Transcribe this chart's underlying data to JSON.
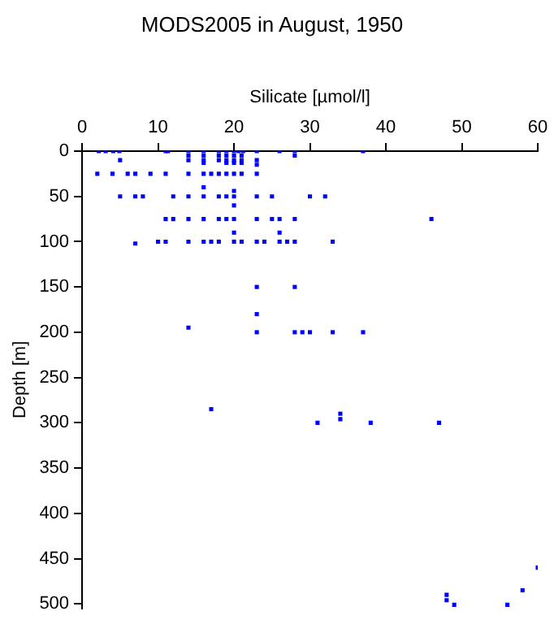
{
  "chart_data": {
    "type": "scatter",
    "title": "MODS2005 in August, 1950",
    "xlabel": "Silicate [µmol/l]",
    "ylabel": "Depth [m]",
    "xlim": [
      0,
      60
    ],
    "xticks": [
      0,
      10,
      20,
      30,
      40,
      50,
      60
    ],
    "ylim": [
      505,
      0
    ],
    "yticks": [
      0,
      50,
      100,
      150,
      200,
      250,
      300,
      350,
      400,
      450,
      500
    ],
    "grid": false,
    "legend": false,
    "marker": "square",
    "series": [
      {
        "color": "#0000ff",
        "x": [
          2.2,
          3.1,
          4.1,
          4.9,
          11,
          11.3,
          14,
          16,
          18,
          19,
          20,
          20.6,
          21.2,
          23,
          26,
          28,
          37,
          14,
          14,
          16,
          16,
          16,
          18,
          18,
          19,
          19,
          19,
          20,
          20,
          20,
          21,
          21,
          21,
          28,
          5,
          23,
          23,
          2,
          4,
          6,
          7,
          9,
          11,
          14,
          16,
          17,
          18,
          19,
          20,
          21,
          23,
          16,
          5,
          7,
          8,
          12,
          14,
          16,
          18,
          19,
          20,
          23,
          25,
          30,
          32,
          20,
          20,
          11,
          12,
          14,
          16,
          18,
          19,
          20,
          23,
          25,
          26,
          28,
          46,
          20,
          26,
          7,
          10,
          11,
          14,
          16,
          17,
          18,
          20,
          21,
          23,
          24,
          26,
          27,
          28,
          33,
          23,
          28,
          23,
          14,
          23,
          28,
          29,
          30,
          33,
          37,
          17,
          34,
          34,
          31,
          38,
          47,
          60,
          58,
          48,
          48,
          49,
          56
        ],
        "values": [
          0,
          0,
          0,
          0,
          0,
          0,
          0,
          0,
          0,
          0,
          0,
          0,
          0,
          0,
          0,
          0,
          0,
          5,
          10,
          5,
          10,
          13,
          5,
          10,
          5,
          10,
          13,
          5,
          10,
          13,
          5,
          10,
          13,
          5,
          10,
          10,
          15,
          25,
          25,
          25,
          25,
          25,
          25,
          25,
          25,
          25,
          25,
          25,
          25,
          25,
          25,
          40,
          50,
          50,
          50,
          50,
          50,
          50,
          50,
          50,
          50,
          50,
          50,
          50,
          50,
          44,
          60,
          75,
          75,
          75,
          75,
          75,
          75,
          75,
          75,
          75,
          75,
          75,
          75,
          90,
          90,
          102,
          100,
          100,
          100,
          100,
          100,
          100,
          100,
          100,
          100,
          100,
          100,
          100,
          100,
          100,
          150,
          150,
          180,
          195,
          200,
          200,
          200,
          200,
          200,
          200,
          285,
          290,
          296,
          300,
          300,
          300,
          460,
          485,
          490,
          496,
          501,
          501
        ]
      }
    ]
  }
}
